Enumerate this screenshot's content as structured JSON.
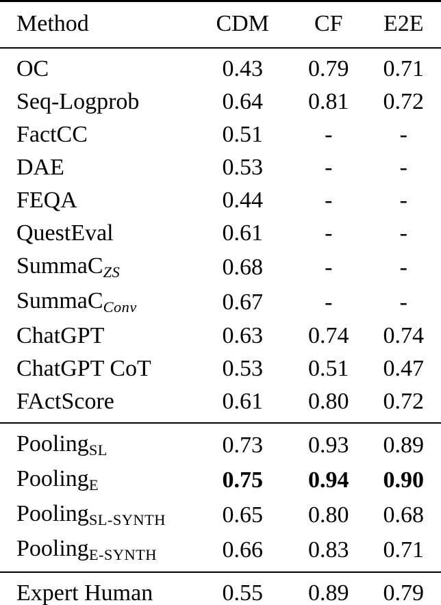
{
  "table": {
    "headers": [
      {
        "label": "Method"
      },
      {
        "label": "CDM"
      },
      {
        "label": "CF"
      },
      {
        "label": "E2E"
      }
    ],
    "sections": [
      {
        "name": "baselines",
        "rows": [
          {
            "method": [
              {
                "t": "OC"
              }
            ],
            "values": [
              "0.43",
              "0.79",
              "0.71"
            ],
            "bold_values": false
          },
          {
            "method": [
              {
                "t": "Seq-Logprob"
              }
            ],
            "values": [
              "0.64",
              "0.81",
              "0.72"
            ],
            "bold_values": false
          },
          {
            "method": [
              {
                "t": "FactCC"
              }
            ],
            "values": [
              "0.51",
              "-",
              "-"
            ],
            "bold_values": false
          },
          {
            "method": [
              {
                "t": "DAE"
              }
            ],
            "values": [
              "0.53",
              "-",
              "-"
            ],
            "bold_values": false
          },
          {
            "method": [
              {
                "t": "FEQA"
              }
            ],
            "values": [
              "0.44",
              "-",
              "-"
            ],
            "bold_values": false
          },
          {
            "method": [
              {
                "t": "QuestEval"
              }
            ],
            "values": [
              "0.61",
              "-",
              "-"
            ],
            "bold_values": false
          },
          {
            "method": [
              {
                "t": "SummaC"
              },
              {
                "t": "ZS",
                "sub": true,
                "italic": true
              }
            ],
            "values": [
              "0.68",
              "-",
              "-"
            ],
            "bold_values": false
          },
          {
            "method": [
              {
                "t": "SummaC"
              },
              {
                "t": "Conv",
                "sub": true,
                "italic": true
              }
            ],
            "values": [
              "0.67",
              "-",
              "-"
            ],
            "bold_values": false
          },
          {
            "method": [
              {
                "t": "ChatGPT"
              }
            ],
            "values": [
              "0.63",
              "0.74",
              "0.74"
            ],
            "bold_values": false
          },
          {
            "method": [
              {
                "t": "ChatGPT CoT"
              }
            ],
            "values": [
              "0.53",
              "0.51",
              "0.47"
            ],
            "bold_values": false
          },
          {
            "method": [
              {
                "t": "FActScore"
              }
            ],
            "values": [
              "0.61",
              "0.80",
              "0.72"
            ],
            "bold_values": false
          }
        ]
      },
      {
        "name": "pooling",
        "rows": [
          {
            "method": [
              {
                "t": "Pooling"
              },
              {
                "t": "SL",
                "sub": true
              }
            ],
            "values": [
              "0.73",
              "0.93",
              "0.89"
            ],
            "bold_values": false
          },
          {
            "method": [
              {
                "t": "Pooling"
              },
              {
                "t": "E",
                "sub": true
              }
            ],
            "values": [
              "0.75",
              "0.94",
              "0.90"
            ],
            "bold_values": true
          },
          {
            "method": [
              {
                "t": "Pooling"
              },
              {
                "t": "SL-SYNTH",
                "sub": true
              }
            ],
            "values": [
              "0.65",
              "0.80",
              "0.68"
            ],
            "bold_values": false
          },
          {
            "method": [
              {
                "t": "Pooling"
              },
              {
                "t": "E-SYNTH",
                "sub": true
              }
            ],
            "values": [
              "0.66",
              "0.83",
              "0.71"
            ],
            "bold_values": false
          }
        ]
      },
      {
        "name": "human",
        "rows": [
          {
            "method": [
              {
                "t": "Expert Human"
              }
            ],
            "values": [
              "0.55",
              "0.89",
              "0.79"
            ],
            "bold_values": false
          }
        ]
      }
    ]
  }
}
